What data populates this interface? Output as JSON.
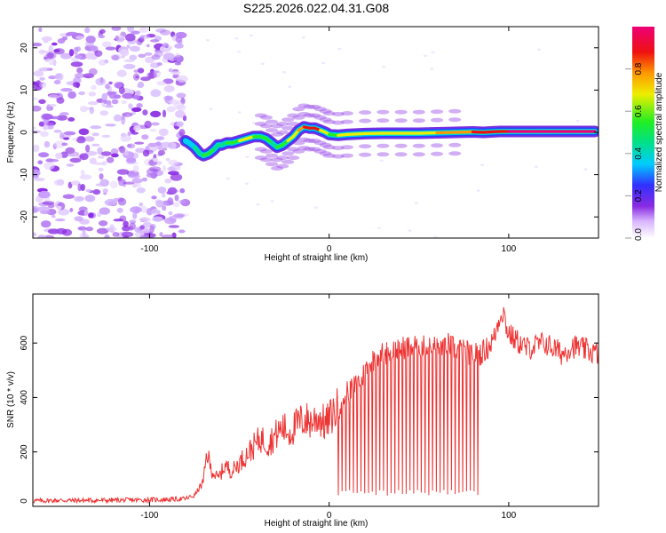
{
  "title": "S225.2026.022.04.31.G08",
  "chart_data": [
    {
      "type": "heatmap",
      "xlabel": "Height of straight line (km)",
      "ylabel": "Frequency (Hz)",
      "xlim": [
        -165,
        150
      ],
      "ylim": [
        -25,
        25
      ],
      "x_ticks": [
        -100,
        0,
        100
      ],
      "y_ticks": [
        -20,
        -10,
        0,
        10,
        20
      ],
      "noise_region_x": [
        -165,
        -80
      ],
      "ridge": {
        "x": [
          -80,
          -78,
          -75,
          -72,
          -70,
          -67,
          -64,
          -62,
          -60,
          -57,
          -54,
          -50,
          -46,
          -42,
          -38,
          -35,
          -32,
          -29,
          -26,
          -23,
          -20,
          -17,
          -14,
          -11,
          -8,
          -5,
          -2,
          0,
          5,
          10,
          20,
          30,
          40,
          50,
          60,
          70,
          80,
          86,
          90,
          95,
          100,
          110,
          120,
          130,
          140,
          148
        ],
        "y": [
          -2,
          -2.5,
          -3.5,
          -5,
          -5.5,
          -5,
          -4,
          -3,
          -3,
          -2.5,
          -2.5,
          -2,
          -1.5,
          -1,
          -1,
          -1.5,
          -2.5,
          -3.5,
          -3,
          -2,
          -1,
          0.5,
          1.3,
          1,
          1,
          0.5,
          0,
          -0.5,
          -0.7,
          -0.5,
          -0.3,
          -0.2,
          -0.2,
          -0.2,
          -0.1,
          0,
          0.1,
          0,
          0.1,
          0.2,
          0.2,
          0.2,
          0.2,
          0.2,
          0.2,
          0.2
        ],
        "amplitude": [
          0.3,
          0.3,
          0.35,
          0.4,
          0.45,
          0.5,
          0.45,
          0.4,
          0.4,
          0.45,
          0.5,
          0.55,
          0.6,
          0.55,
          0.5,
          0.5,
          0.45,
          0.45,
          0.5,
          0.55,
          0.6,
          0.7,
          0.85,
          0.9,
          0.85,
          0.75,
          0.6,
          0.55,
          0.55,
          0.6,
          0.65,
          0.65,
          0.65,
          0.65,
          0.7,
          0.75,
          0.8,
          0.85,
          0.85,
          0.8,
          0.9,
          0.95,
          0.95,
          0.95,
          0.95,
          0.95
        ]
      },
      "colorbar": {
        "label": "Normalized spectral amplitude",
        "range": [
          0,
          1
        ],
        "ticks": [
          "0.0",
          "0.2",
          "0.4",
          "0.6",
          "0.8"
        ]
      }
    },
    {
      "type": "line",
      "xlabel": "Height of straight line (km)",
      "ylabel": "SNR (10 * v/v)",
      "xlim": [
        -165,
        150
      ],
      "ylim": [
        0,
        780
      ],
      "x_ticks": [
        -100,
        0,
        100
      ],
      "y_ticks": [
        0,
        200,
        400,
        600
      ],
      "color": "#ee3333",
      "series": [
        {
          "name": "SNR",
          "x": [
            -165,
            -150,
            -130,
            -110,
            -90,
            -80,
            -75,
            -70,
            -68,
            -66,
            -62,
            -58,
            -54,
            -50,
            -46,
            -42,
            -38,
            -34,
            -30,
            -26,
            -22,
            -18,
            -14,
            -10,
            -6,
            -2,
            2,
            6,
            10,
            14,
            18,
            22,
            26,
            30,
            35,
            40,
            45,
            50,
            55,
            60,
            65,
            70,
            75,
            80,
            84,
            88,
            92,
            95,
            97,
            99,
            102,
            106,
            110,
            115,
            120,
            125,
            130,
            135,
            140,
            145,
            150
          ],
          "y": [
            20,
            22,
            22,
            23,
            25,
            28,
            40,
            90,
            200,
            140,
            100,
            150,
            130,
            160,
            190,
            220,
            250,
            230,
            260,
            290,
            270,
            300,
            320,
            310,
            330,
            300,
            340,
            370,
            420,
            440,
            470,
            520,
            550,
            560,
            570,
            580,
            590,
            590,
            580,
            590,
            600,
            580,
            570,
            560,
            560,
            580,
            620,
            700,
            720,
            650,
            620,
            600,
            580,
            590,
            600,
            580,
            560,
            590,
            580,
            570,
            560
          ]
        }
      ]
    }
  ]
}
